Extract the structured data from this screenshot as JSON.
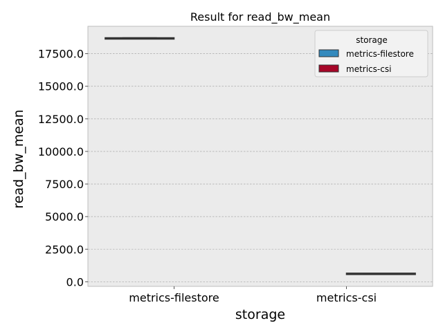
{
  "chart_data": {
    "type": "box",
    "title": "Result for read_bw_mean",
    "xlabel": "storage",
    "ylabel": "read_bw_mean",
    "categories": [
      "metrics-filestore",
      "metrics-csi"
    ],
    "yticks": [
      "0.0",
      "2500.0",
      "5000.0",
      "7500.0",
      "10000.0",
      "12500.0",
      "15000.0",
      "17500.0"
    ],
    "ylim": [
      -350,
      19600
    ],
    "grid": true,
    "legend": {
      "title": "storage",
      "placement": "top-right",
      "entries": [
        "metrics-filestore",
        "metrics-csi"
      ]
    },
    "series": [
      {
        "name": "metrics-filestore",
        "color": "#348abd",
        "category": "metrics-filestore",
        "min": 18650,
        "q1": 18650,
        "median": 18660,
        "q3": 18670,
        "max": 18720
      },
      {
        "name": "metrics-csi",
        "color": "#a60628",
        "category": "metrics-csi",
        "min": 580,
        "q1": 590,
        "median": 600,
        "q3": 610,
        "max": 615
      }
    ]
  },
  "colors": {
    "plot_background": "#ebebeb",
    "grid": "#b2b2b2",
    "box_line": "#333333"
  }
}
